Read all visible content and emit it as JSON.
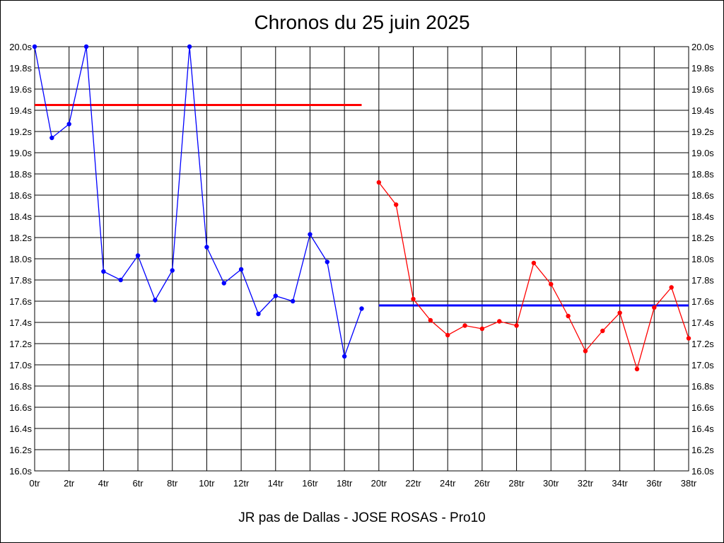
{
  "chart_data": {
    "type": "line",
    "title": "Chronos du 25 juin 2025",
    "footer": "JR pas de Dallas - JOSE ROSAS - Pro10",
    "ylim": [
      16.0,
      20.0
    ],
    "xlim": [
      0,
      38
    ],
    "y_ticks": [
      "16.0s",
      "16.2s",
      "16.4s",
      "16.6s",
      "16.8s",
      "17.0s",
      "17.2s",
      "17.4s",
      "17.6s",
      "17.8s",
      "18.0s",
      "18.2s",
      "18.4s",
      "18.6s",
      "18.8s",
      "19.0s",
      "19.2s",
      "19.4s",
      "19.6s",
      "19.8s",
      "20.0s"
    ],
    "x_ticks": [
      "0tr",
      "2tr",
      "4tr",
      "6tr",
      "8tr",
      "10tr",
      "12tr",
      "14tr",
      "16tr",
      "18tr",
      "20tr",
      "22tr",
      "24tr",
      "26tr",
      "28tr",
      "30tr",
      "32tr",
      "34tr",
      "36tr",
      "38tr"
    ],
    "grid": true,
    "series": [
      {
        "color": "#0000ff",
        "x": [
          0,
          1,
          2,
          3,
          4,
          5,
          6,
          7,
          8,
          9,
          10,
          11,
          12,
          13,
          14,
          15,
          16,
          17,
          18,
          19
        ],
        "values": [
          20.0,
          19.14,
          19.27,
          20.0,
          17.88,
          17.8,
          18.03,
          17.61,
          17.89,
          20.0,
          18.11,
          17.77,
          17.9,
          17.48,
          17.65,
          17.6,
          18.23,
          17.97,
          17.08,
          17.53
        ]
      },
      {
        "color": "#ff0000",
        "x": [
          20,
          21,
          22,
          23,
          24,
          25,
          26,
          27,
          28,
          29,
          30,
          31,
          32,
          33,
          34,
          35,
          36,
          37,
          38
        ],
        "values": [
          18.72,
          18.51,
          17.62,
          17.42,
          17.28,
          17.37,
          17.34,
          17.41,
          17.37,
          17.96,
          17.76,
          17.46,
          17.13,
          17.32,
          17.49,
          16.96,
          17.54,
          17.73,
          17.25
        ]
      }
    ],
    "reference_lines": [
      {
        "color": "#ff0000",
        "value": 19.45,
        "x_start": 0,
        "x_end": 19
      },
      {
        "color": "#0000ff",
        "value": 17.56,
        "x_start": 20,
        "x_end": 38
      }
    ]
  }
}
